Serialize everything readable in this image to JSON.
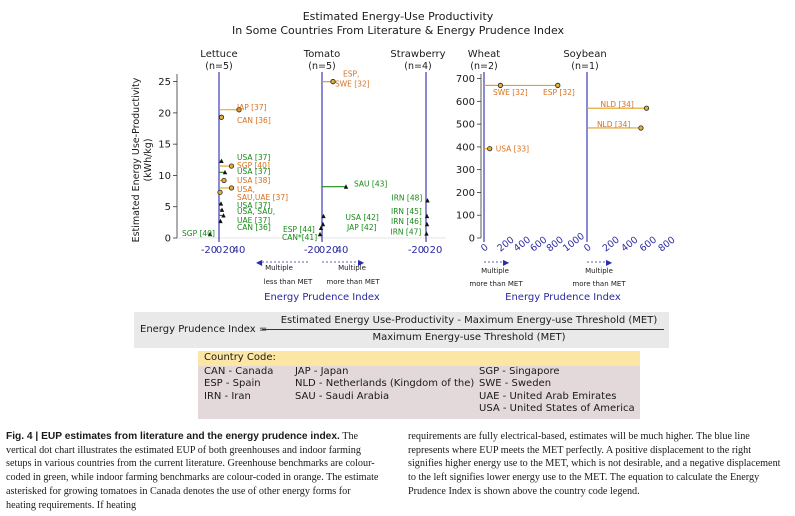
{
  "title_line1": "Estimated Energy-Use Productivity",
  "title_line2": "In Some Countries From Literature & Energy Prudence Index",
  "chart_data": [
    {
      "type": "scatter",
      "panel": "Lettuce",
      "n_label": "(n=5)",
      "ylabel": "Estimated Energy Use-Productivity",
      "ylabel_unit": "(kWh/kg)",
      "ylim": [
        0,
        27
      ],
      "yticks": [
        0,
        5,
        10,
        15,
        20,
        25
      ],
      "xlim": [
        -30,
        50
      ],
      "xticks": [
        "-20",
        "0",
        "20",
        "40"
      ],
      "points": [
        {
          "x": 40,
          "y": 20.5,
          "label": "JAP [37]",
          "group": "indoor"
        },
        {
          "x": 5,
          "y": 19.3,
          "label": "CAN [36]",
          "group": "indoor"
        },
        {
          "x": 5,
          "y": 12.3,
          "label": "USA [37]",
          "group": "greenhouse"
        },
        {
          "x": 25,
          "y": 11.5,
          "label": "SGP [40]",
          "group": "indoor"
        },
        {
          "x": 12,
          "y": 10.5,
          "label": "USA [37]",
          "group": "greenhouse"
        },
        {
          "x": 10,
          "y": 9.2,
          "label": "USA [38]",
          "group": "indoor"
        },
        {
          "x": 25,
          "y": 8.0,
          "label": "USA,",
          "group": "indoor"
        },
        {
          "x": 2,
          "y": 7.3,
          "label": "SAU,UAE [37]",
          "group": "indoor"
        },
        {
          "x": 4,
          "y": 5.5,
          "label": "USA [37]",
          "group": "greenhouse"
        },
        {
          "x": 6,
          "y": 4.5,
          "label": "USA, SAU,",
          "group": "greenhouse"
        },
        {
          "x": 9,
          "y": 3.6,
          "label": "UAE [37]",
          "group": "greenhouse"
        },
        {
          "x": 3,
          "y": 2.7,
          "label": "CAN [36]",
          "group": "greenhouse"
        },
        {
          "x": -18,
          "y": 0.6,
          "label": "SGP [40]",
          "group": "greenhouse"
        }
      ]
    },
    {
      "type": "scatter",
      "panel": "Tomato",
      "n_label": "(n=5)",
      "xlim": [
        -30,
        50
      ],
      "xticks": [
        "-20",
        "0",
        "20",
        "40"
      ],
      "points": [
        {
          "x": 22,
          "y": 25.0,
          "label": "ESP,",
          "group": "indoor"
        },
        {
          "x": 22,
          "y": 25.0,
          "label": "SWE [32]",
          "group": "indoor"
        },
        {
          "x": 48,
          "y": 8.2,
          "label": "SAU [43]",
          "group": "greenhouse"
        },
        {
          "x": 3,
          "y": 3.5,
          "label": "USA [42]",
          "group": "greenhouse"
        },
        {
          "x": 2,
          "y": 2.2,
          "label": "JAP [42]",
          "group": "greenhouse"
        },
        {
          "x": -2,
          "y": 1.6,
          "label": "ESP [44]",
          "group": "greenhouse"
        },
        {
          "x": -4,
          "y": 0.6,
          "label": "CAN*[41]",
          "group": "greenhouse"
        }
      ]
    },
    {
      "type": "scatter",
      "panel": "Strawberry",
      "n_label": "(n=4)",
      "xlim": [
        -30,
        30
      ],
      "xticks": [
        "-20",
        "0",
        "20"
      ],
      "points": [
        {
          "x": 3,
          "y": 6.0,
          "label": "IRN [48]",
          "group": "greenhouse"
        },
        {
          "x": 2,
          "y": 3.5,
          "label": "IRN [45]",
          "group": "greenhouse"
        },
        {
          "x": 2,
          "y": 2.2,
          "label": "IRN [46]",
          "group": "greenhouse"
        },
        {
          "x": 1,
          "y": 0.7,
          "label": "IRN [47]",
          "group": "greenhouse"
        }
      ]
    },
    {
      "type": "scatter",
      "panel": "Wheat",
      "n_label": "(n=2)",
      "ylim": [
        0,
        720
      ],
      "yticks": [
        0,
        100,
        200,
        300,
        400,
        500,
        600,
        700
      ],
      "xlim": [
        -30,
        1070
      ],
      "xticks": [
        "0",
        "200",
        "400",
        "600",
        "800",
        "1000"
      ],
      "points": [
        {
          "x": 900,
          "y": 670,
          "label": "SWE [32]",
          "group": "indoor"
        },
        {
          "x": 200,
          "y": 670,
          "label": "ESP [32]",
          "group": "indoor"
        },
        {
          "x": 70,
          "y": 392,
          "label": "USA [33]",
          "group": "indoor"
        }
      ]
    },
    {
      "type": "scatter",
      "panel": "Soybean",
      "n_label": "(n=1)",
      "xlim": [
        -30,
        760
      ],
      "xticks": [
        "0",
        "200",
        "400",
        "600",
        "800"
      ],
      "points": [
        {
          "x": 640,
          "y": 570,
          "label": "NLD [34]",
          "group": "indoor"
        },
        {
          "x": 580,
          "y": 483,
          "label": "NLD [34]",
          "group": "indoor"
        }
      ]
    }
  ],
  "axis_note_left": "Multiple",
  "axis_note_left2": "less than MET",
  "axis_note_right": "Multiple",
  "axis_note_right2": "more than MET",
  "xlabel_left": "Energy Prudence Index",
  "xlabel_right": "Energy Prudence Index",
  "formula": {
    "lhs": "Energy Prudence Index =",
    "numerator": "Estimated Energy Use-Productivity - Maximum Energy-use Threshold (MET)",
    "denominator": "Maximum Energy-use Threshold (MET)"
  },
  "legend": {
    "title": "Country Code:",
    "col1": [
      "CAN - Canada",
      "ESP - Spain",
      "IRN - Iran"
    ],
    "col2": [
      "JAP - Japan",
      "NLD - Netherlands (Kingdom of the)",
      "SAU - Saudi Arabia"
    ],
    "col3": [
      "SGP - Singapore",
      "SWE - Sweden",
      "UAE - United Arab Emirates",
      "USA - United States of America"
    ]
  },
  "caption_left": {
    "bold": "Fig. 4 | EUP estimates from literature and the energy prudence index.",
    "text": " The vertical dot chart illustrates the estimated EUP of both greenhouses and indoor farming setups in various countries from the current literature. Greenhouse benchmarks are colour-coded in green, while indoor farming benchmarks are colour-coded in orange. The estimate asterisked for growing tomatoes in Canada denotes the use of other energy forms for heating requirements. If heating"
  },
  "caption_right": "requirements are fully electrical-based, estimates will be much higher. The blue line represents where EUP meets the MET perfectly. A positive displacement to the right signifies higher energy use to the MET, which is not desirable, and a negative displacement to the left signifies lower energy use to the MET. The equation to calculate the Energy Prudence Index is shown above the country code legend.",
  "colors": {
    "greenhouse": "#1a8a1a",
    "indoor": "#d9701f",
    "met_line": "#2a2ab0",
    "axis_text": "#2a2aa0",
    "marker_fill": "#e0b23a",
    "marker_edge": "#222222"
  }
}
